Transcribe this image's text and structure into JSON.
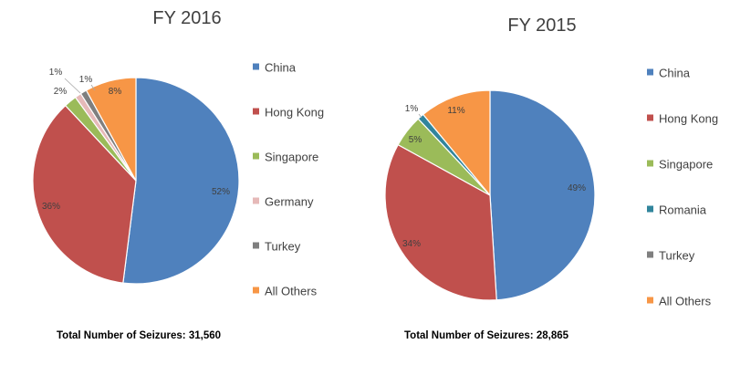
{
  "chart_data": [
    {
      "type": "pie",
      "title": "FY 2016",
      "slices": [
        {
          "label": "China",
          "value": 52,
          "data_label": "52%",
          "color": "#4f81bd"
        },
        {
          "label": "Hong Kong",
          "value": 36,
          "data_label": "36%",
          "color": "#c0504d"
        },
        {
          "label": "Singapore",
          "value": 2,
          "data_label": "2%",
          "color": "#9bbb59"
        },
        {
          "label": "Germany",
          "value": 1,
          "data_label": "1%",
          "color": "#e6b9b8"
        },
        {
          "label": "Turkey",
          "value": 1,
          "data_label": "1%",
          "color": "#7f7f7f"
        },
        {
          "label": "All Others",
          "value": 8,
          "data_label": "8%",
          "color": "#f79646"
        }
      ],
      "legend_position": "right",
      "footer": "Total Number of Seizures: 31,560"
    },
    {
      "type": "pie",
      "title": "FY 2015",
      "slices": [
        {
          "label": "China",
          "value": 49,
          "data_label": "49%",
          "color": "#4f81bd"
        },
        {
          "label": "Hong Kong",
          "value": 34,
          "data_label": "34%",
          "color": "#c0504d"
        },
        {
          "label": "Singapore",
          "value": 5,
          "data_label": "5%",
          "color": "#9bbb59"
        },
        {
          "label": "Romania",
          "value": 1,
          "data_label": "1%",
          "color": "#31859c"
        },
        {
          "label": "Turkey",
          "value": 0,
          "data_label": "",
          "color": "#7f7f7f"
        },
        {
          "label": "All Others",
          "value": 11,
          "data_label": "11%",
          "color": "#f79646"
        }
      ],
      "legend_position": "right",
      "footer": "Total Number of Seizures: 28,865"
    }
  ]
}
